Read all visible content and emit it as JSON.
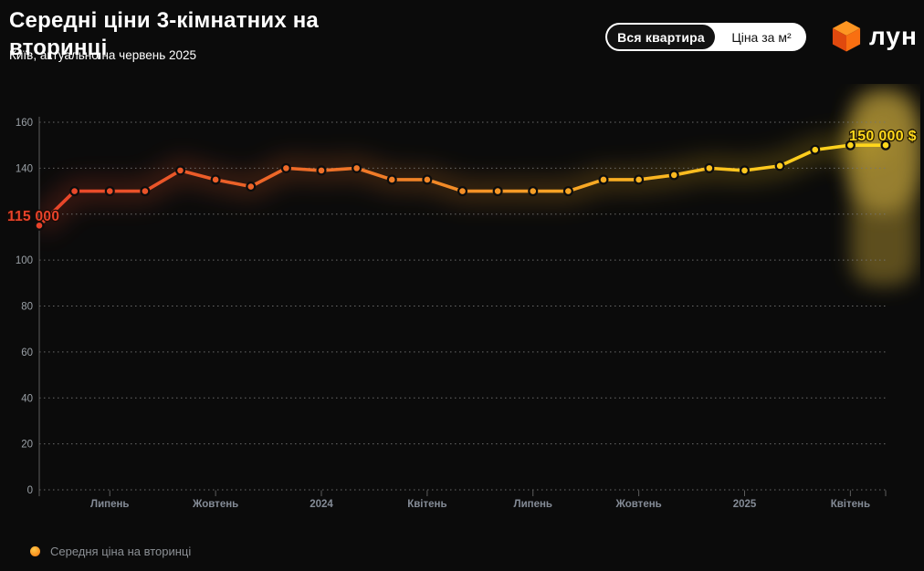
{
  "header": {
    "title": "Середні ціни 3-кімнатних на вторинці",
    "title_lines": [
      "Середні ціни 3-кімнатних на",
      "вторинці"
    ],
    "subtitle": "Київ, актуально на червень 2025",
    "toggle": {
      "options": [
        {
          "label": "Вся квартира",
          "selected": true
        },
        {
          "label": "Ціна за м²",
          "selected": false
        }
      ]
    },
    "logo_text": "лун"
  },
  "chart_data": {
    "type": "line",
    "title": "Середні ціни 3-кімнатних на вторинці",
    "subtitle": "Київ, актуально на червень 2025",
    "unit": "thousand USD",
    "x": [
      "2023-05",
      "2023-06",
      "2023-07",
      "2023-08",
      "2023-09",
      "2023-10",
      "2023-11",
      "2023-12",
      "2024-01",
      "2024-02",
      "2024-03",
      "2024-04",
      "2024-05",
      "2024-06",
      "2024-07",
      "2024-08",
      "2024-09",
      "2024-10",
      "2024-11",
      "2024-12",
      "2025-01",
      "2025-02",
      "2025-03",
      "2025-04",
      "2025-05"
    ],
    "values": [
      115,
      130,
      130,
      130,
      139,
      135,
      132,
      140,
      139,
      140,
      135,
      135,
      130,
      130,
      130,
      130,
      135,
      135,
      137,
      140,
      139,
      141,
      148,
      150,
      150
    ],
    "xticks": [
      {
        "index": 2,
        "label": "Липень"
      },
      {
        "index": 5,
        "label": "Жовтень"
      },
      {
        "index": 8,
        "label": "2024"
      },
      {
        "index": 11,
        "label": "Квітень"
      },
      {
        "index": 14,
        "label": "Липень"
      },
      {
        "index": 17,
        "label": "Жовтень"
      },
      {
        "index": 20,
        "label": "2025"
      },
      {
        "index": 23,
        "label": "Квітень"
      }
    ],
    "ylim": [
      0,
      160
    ],
    "ygrid_step": 20,
    "yticks_visible": [
      0,
      20,
      40,
      60,
      80,
      100,
      140,
      160
    ],
    "grid": "dotted horizontal",
    "first_point_label": "115 000",
    "last_point_label": "150 000 $",
    "line_gradient": [
      "#e8432a",
      "#ee6d28",
      "#f59d26",
      "#ffc51e",
      "#ffd81c"
    ],
    "legend": [
      {
        "label": "Середня ціна на вторинці",
        "color": "#fb9a25"
      }
    ],
    "legend_position": "bottom-left"
  },
  "colors": {
    "background": "#0b0b0b",
    "grid_line": "#767676",
    "axis_line": "#5c5c5c",
    "y_tick_text": "#9aa0a6",
    "x_tick_text": "#848b96",
    "first_label": "#e8432a",
    "last_label": "#ffd81c",
    "highlight_glow": "#d9b43a",
    "title_text": "#ffffff",
    "legend_text": "#8b8f94",
    "toggle_bg": "#ffffff",
    "toggle_selected_bg": "#121212"
  }
}
